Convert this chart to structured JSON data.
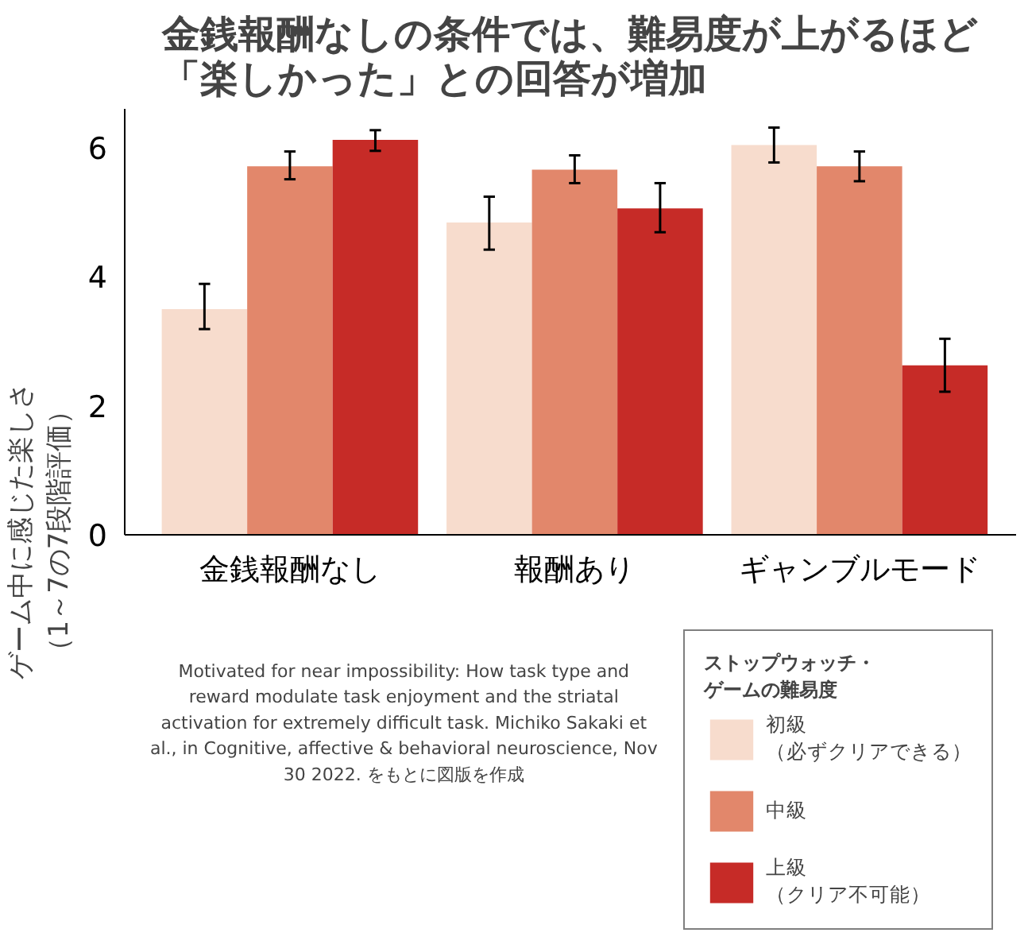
{
  "chart_data": {
    "type": "bar",
    "title": "金銭報酬なしの条件では、難易度が上がるほど「楽しかった」との回答が増加",
    "ylabel": "ゲーム中に感じた楽しさ（1～7の7段階評価）",
    "legend_title": "ストップウォッチ・ゲームの難易度",
    "categories": [
      "金銭報酬なし",
      "報酬あり",
      "ギャンブルモード"
    ],
    "series": [
      {
        "name": "初級（必ずクリアできる）",
        "color": "#f7dccd",
        "values": [
          3.5,
          4.84,
          6.04
        ],
        "errors": [
          [
            3.19,
            3.89
          ],
          [
            4.42,
            5.24
          ],
          [
            5.77,
            6.31
          ]
        ]
      },
      {
        "name": "中級",
        "color": "#e2876b",
        "values": [
          5.71,
          5.66,
          5.71
        ],
        "errors": [
          [
            5.51,
            5.94
          ],
          [
            5.45,
            5.88
          ],
          [
            5.48,
            5.94
          ]
        ]
      },
      {
        "name": "上級（クリア不可能）",
        "color": "#c62b27",
        "values": [
          6.12,
          5.06,
          2.63
        ],
        "errors": [
          [
            5.95,
            6.27
          ],
          [
            4.69,
            5.45
          ],
          [
            2.22,
            3.04
          ]
        ]
      }
    ],
    "ylim": [
      0,
      6.6
    ],
    "yticks": [
      0,
      2,
      4,
      6
    ],
    "legend": "bottom right",
    "annotations": [
      "Motivated for near impossibility: How task type and\nreward modulate task enjoyment and the striatal\nactivation for extremely difficult task. Michiko Sakaki et\nal., in Cognitive, affective & behavioral neuroscience, Nov\n30 2022. をもとに図版を作成"
    ]
  }
}
